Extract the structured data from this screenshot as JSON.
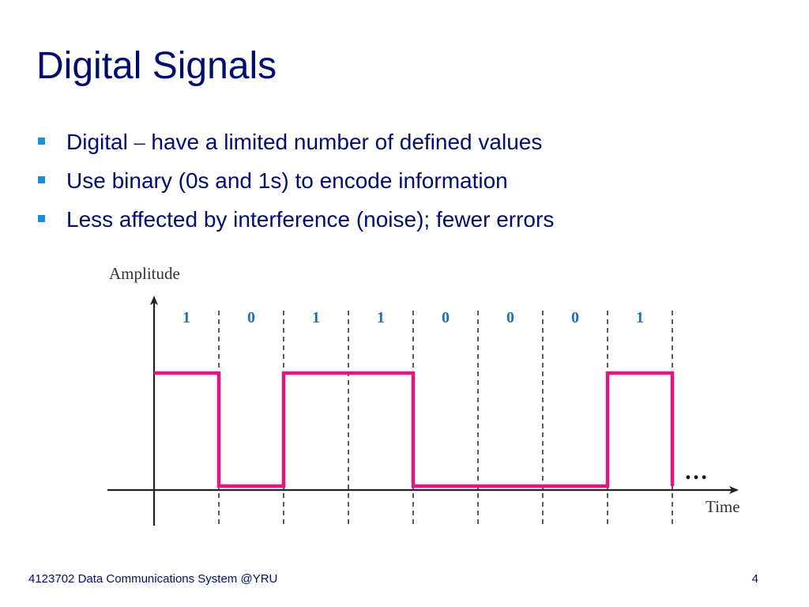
{
  "slide": {
    "title": "Digital Signals",
    "bullets": [
      {
        "pre": "Digital ",
        "dash": "–",
        "post": " have a limited number of defined values"
      },
      {
        "text": "Use binary (0s and 1s) to encode information"
      },
      {
        "text": "Less affected by interference (noise); fewer errors"
      }
    ]
  },
  "diagram": {
    "y_axis_label": "Amplitude",
    "x_axis_label": "Time",
    "bits": [
      "1",
      "0",
      "1",
      "1",
      "0",
      "0",
      "0",
      "1"
    ],
    "continuation": "…",
    "colors": {
      "signal": "#e3157f",
      "bit_labels": "#1f6fb2",
      "axes": "#222222",
      "text": "#000c6e",
      "bullet": "#1a8fd6"
    }
  },
  "footer": {
    "course": "4123702 Data Communications System @YRU",
    "page_number": "4"
  }
}
